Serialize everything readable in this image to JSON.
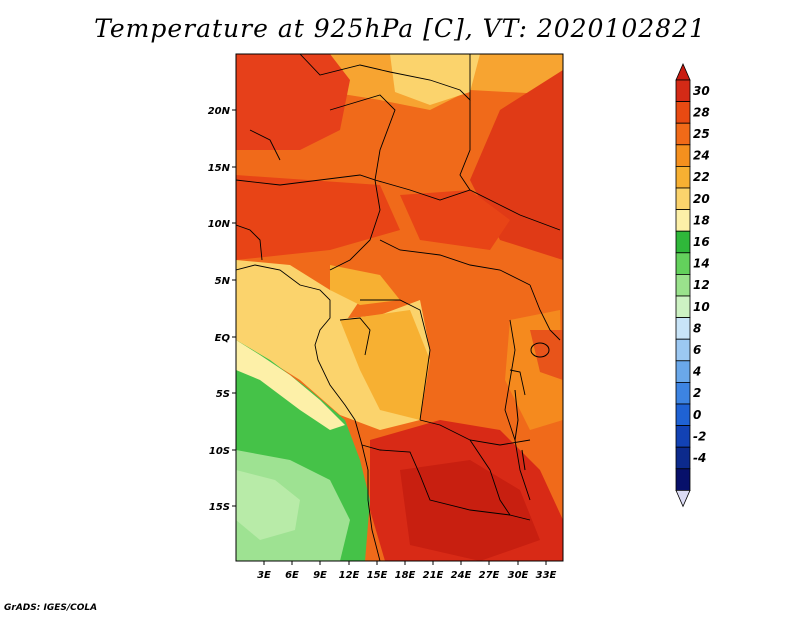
{
  "title": "Temperature at 925hPa [C], VT: 2020102821",
  "credit": "GrADS: IGES/COLA",
  "map": {
    "variable": "Temperature at 925hPa",
    "units": "C",
    "valid_time": "2020102821",
    "lat_ticks": [
      "20N",
      "15N",
      "10N",
      "5N",
      "EQ",
      "5S",
      "10S",
      "15S"
    ],
    "lon_ticks": [
      "3E",
      "6E",
      "9E",
      "12E",
      "15E",
      "18E",
      "21E",
      "24E",
      "27E",
      "30E",
      "33E"
    ]
  },
  "colorbar": {
    "labels": [
      "30",
      "28",
      "25",
      "24",
      "22",
      "20",
      "18",
      "16",
      "14",
      "12",
      "10",
      "8",
      "6",
      "4",
      "2",
      "0",
      "-2",
      "-4"
    ],
    "colors": [
      "#d42a16",
      "#e84a12",
      "#f16a18",
      "#f5901e",
      "#f7b032",
      "#fbd36c",
      "#fdf0a8",
      "#2fb83a",
      "#63d15c",
      "#9ae28c",
      "#cdf2c3",
      "#c8e4f8",
      "#9cc8f2",
      "#6aa8ea",
      "#3d84e2",
      "#1f62d4",
      "#1242b4",
      "#0c2a8c",
      "#07106a"
    ],
    "top_color": "#c81b10",
    "bottom_color": "#dcdcf4"
  }
}
